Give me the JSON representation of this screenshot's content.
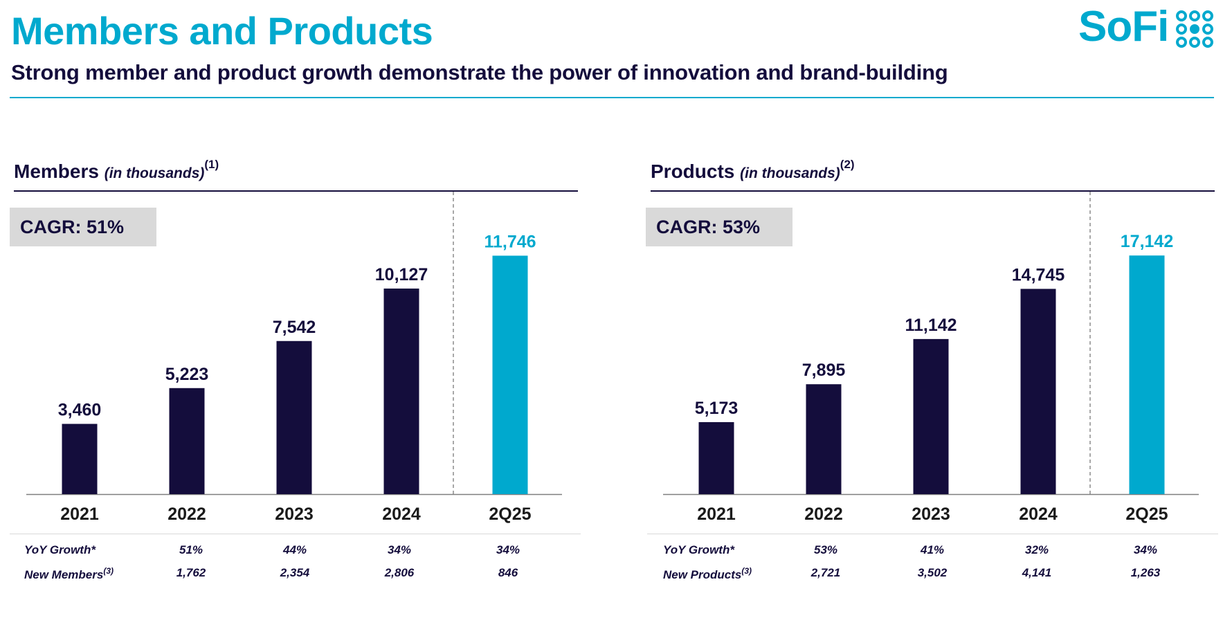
{
  "header": {
    "title": "Members and Products",
    "subtitle": "Strong member and product growth demonstrate the power of innovation and brand-building",
    "logo_text": "SoFi"
  },
  "colors": {
    "accent": "#00a9ce",
    "navy": "#140d3c",
    "cagr_bg": "#d9d9d9"
  },
  "members": {
    "title": "Members",
    "unit": "(in thousands)",
    "footnote": "(1)",
    "cagr": "CAGR: 51%",
    "stats": {
      "row1_label": "YoY Growth*",
      "row1": [
        "51%",
        "44%",
        "34%",
        "34%"
      ],
      "row2_label": "New Members",
      "row2_footnote": "(3)",
      "row2": [
        "1,762",
        "2,354",
        "2,806",
        "846"
      ]
    }
  },
  "products": {
    "title": "Products",
    "unit": "(in thousands)",
    "footnote": "(2)",
    "cagr": "CAGR: 53%",
    "stats": {
      "row1_label": "YoY Growth*",
      "row1": [
        "53%",
        "41%",
        "32%",
        "34%"
      ],
      "row2_label": "New Products",
      "row2_footnote": "(3)",
      "row2": [
        "2,721",
        "3,502",
        "4,141",
        "1,263"
      ]
    }
  },
  "chart_data": [
    {
      "type": "bar",
      "categories": [
        "2021",
        "2022",
        "2023",
        "2024",
        "2Q25"
      ],
      "values": [
        3460,
        5223,
        7542,
        10127,
        11746
      ],
      "labels": [
        "3,460",
        "5,223",
        "7,542",
        "10,127",
        "11,746"
      ],
      "highlight_index": 4,
      "ylim": [
        0,
        12000
      ],
      "grid": false
    },
    {
      "type": "bar",
      "categories": [
        "2021",
        "2022",
        "2023",
        "2024",
        "2Q25"
      ],
      "values": [
        5173,
        7895,
        11142,
        14745,
        17142
      ],
      "labels": [
        "5,173",
        "7,895",
        "11,142",
        "14,745",
        "17,142"
      ],
      "highlight_index": 4,
      "ylim": [
        0,
        17500
      ],
      "grid": false
    }
  ]
}
